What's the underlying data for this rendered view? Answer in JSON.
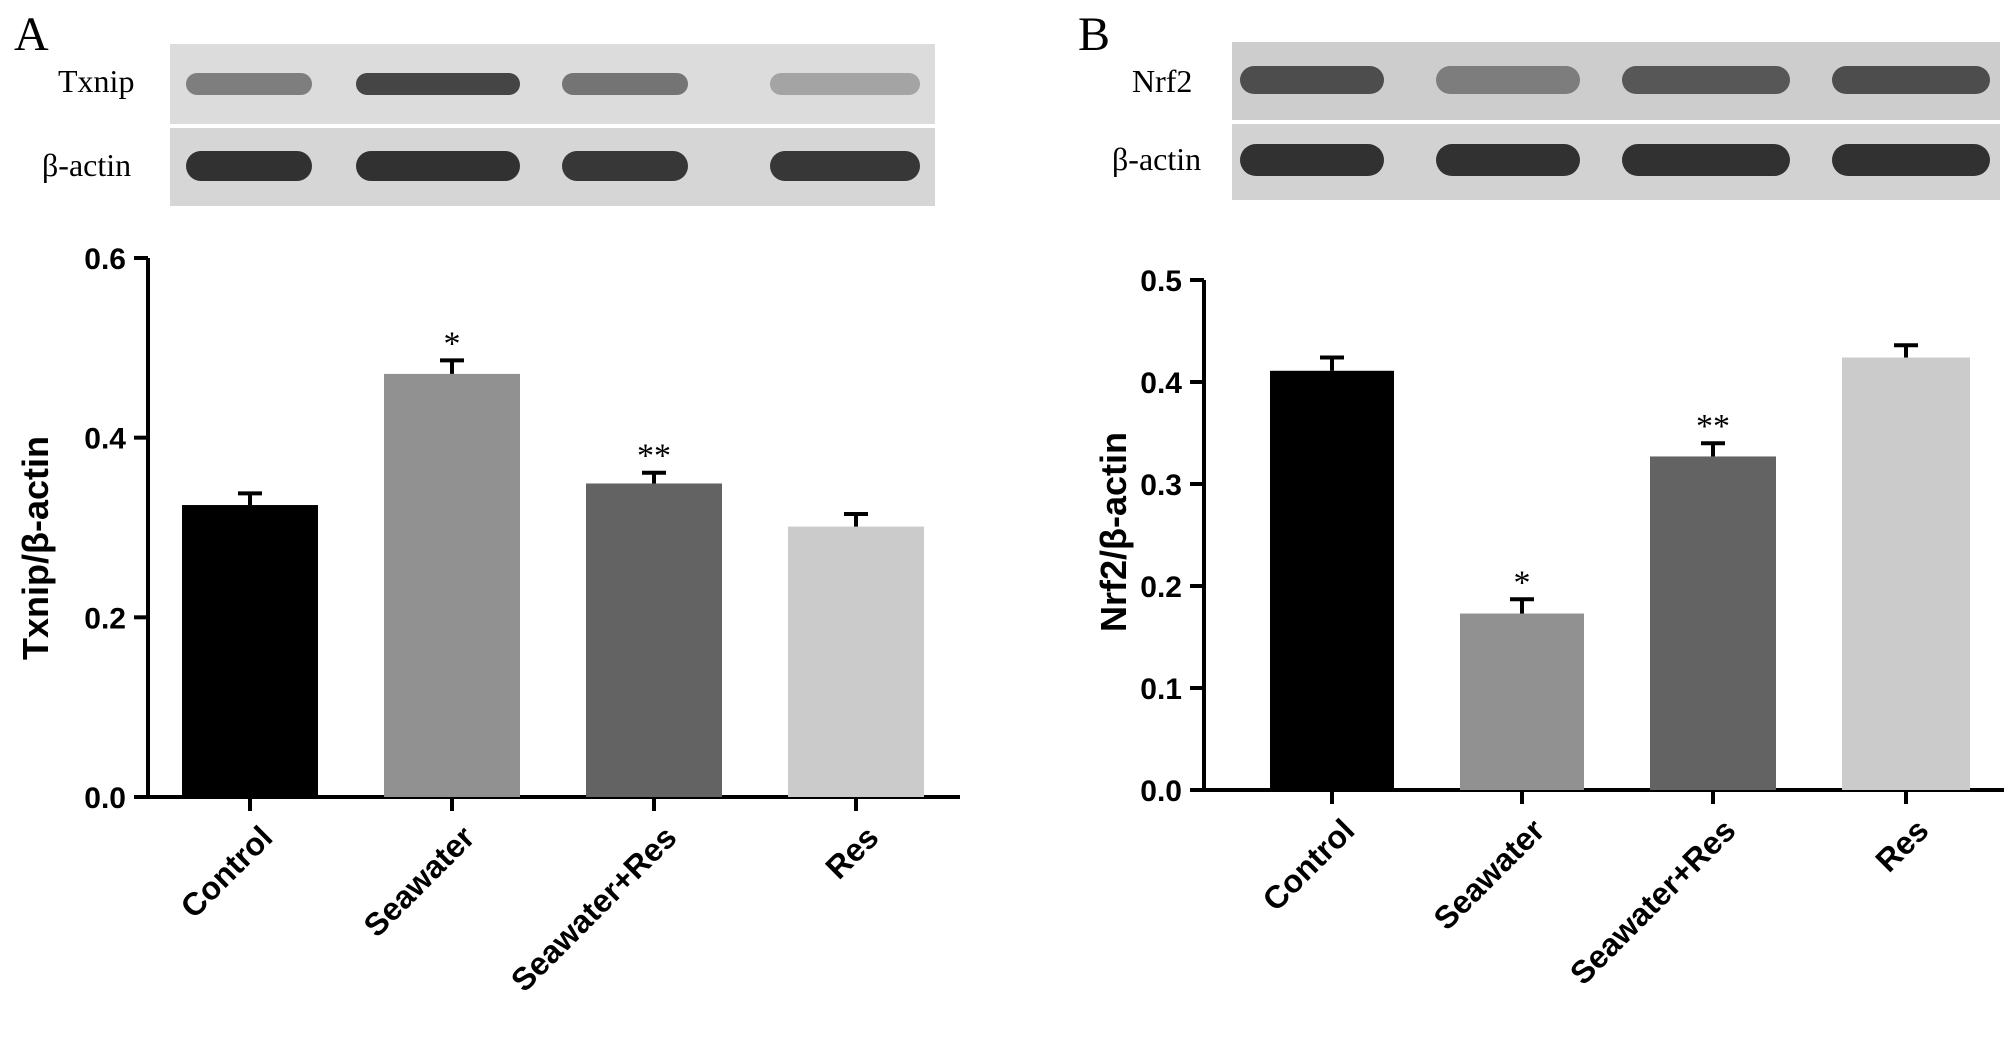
{
  "panels": [
    {
      "letter": "A",
      "blot": {
        "target_label": "Txnip",
        "loading_label": "β-actin",
        "target_band_intensity": [
          0.55,
          0.85,
          0.6,
          0.35
        ],
        "loading_band_intensity": [
          0.95,
          0.95,
          0.92,
          0.92
        ]
      },
      "chart_data": {
        "type": "bar",
        "categories": [
          "Control",
          "Seawater",
          "Seawater+Res",
          "Res"
        ],
        "values": [
          0.325,
          0.471,
          0.349,
          0.301
        ],
        "errors": [
          0.013,
          0.015,
          0.012,
          0.014
        ],
        "significance": [
          "",
          "*",
          "**",
          ""
        ],
        "colors": [
          "#000000",
          "#919191",
          "#636363",
          "#cbcbcb"
        ],
        "xlabel": "",
        "ylabel": "Txnip/β-actin",
        "ylim": [
          0,
          0.6
        ],
        "yticks": [
          "0.0",
          "0.2",
          "0.4",
          "0.6"
        ],
        "ytick_values": [
          0,
          0.2,
          0.4,
          0.6
        ],
        "grid": false
      }
    },
    {
      "letter": "B",
      "blot": {
        "target_label": "Nrf2",
        "loading_label": "β-actin",
        "target_band_intensity": [
          0.8,
          0.55,
          0.75,
          0.8
        ],
        "loading_band_intensity": [
          0.95,
          0.95,
          0.95,
          0.95
        ]
      },
      "chart_data": {
        "type": "bar",
        "categories": [
          "Control",
          "Seawater",
          "Seawater+Res",
          "Res"
        ],
        "values": [
          0.411,
          0.173,
          0.327,
          0.424
        ],
        "errors": [
          0.013,
          0.014,
          0.013,
          0.012
        ],
        "significance": [
          "",
          "*",
          "**",
          ""
        ],
        "colors": [
          "#000000",
          "#919191",
          "#636363",
          "#cbcbcb"
        ],
        "xlabel": "",
        "ylabel": "Nrf2/β-actin",
        "ylim": [
          0,
          0.5
        ],
        "yticks": [
          "0.0",
          "0.1",
          "0.2",
          "0.3",
          "0.4",
          "0.5"
        ],
        "ytick_values": [
          0,
          0.1,
          0.2,
          0.3,
          0.4,
          0.5
        ],
        "grid": false
      }
    }
  ]
}
